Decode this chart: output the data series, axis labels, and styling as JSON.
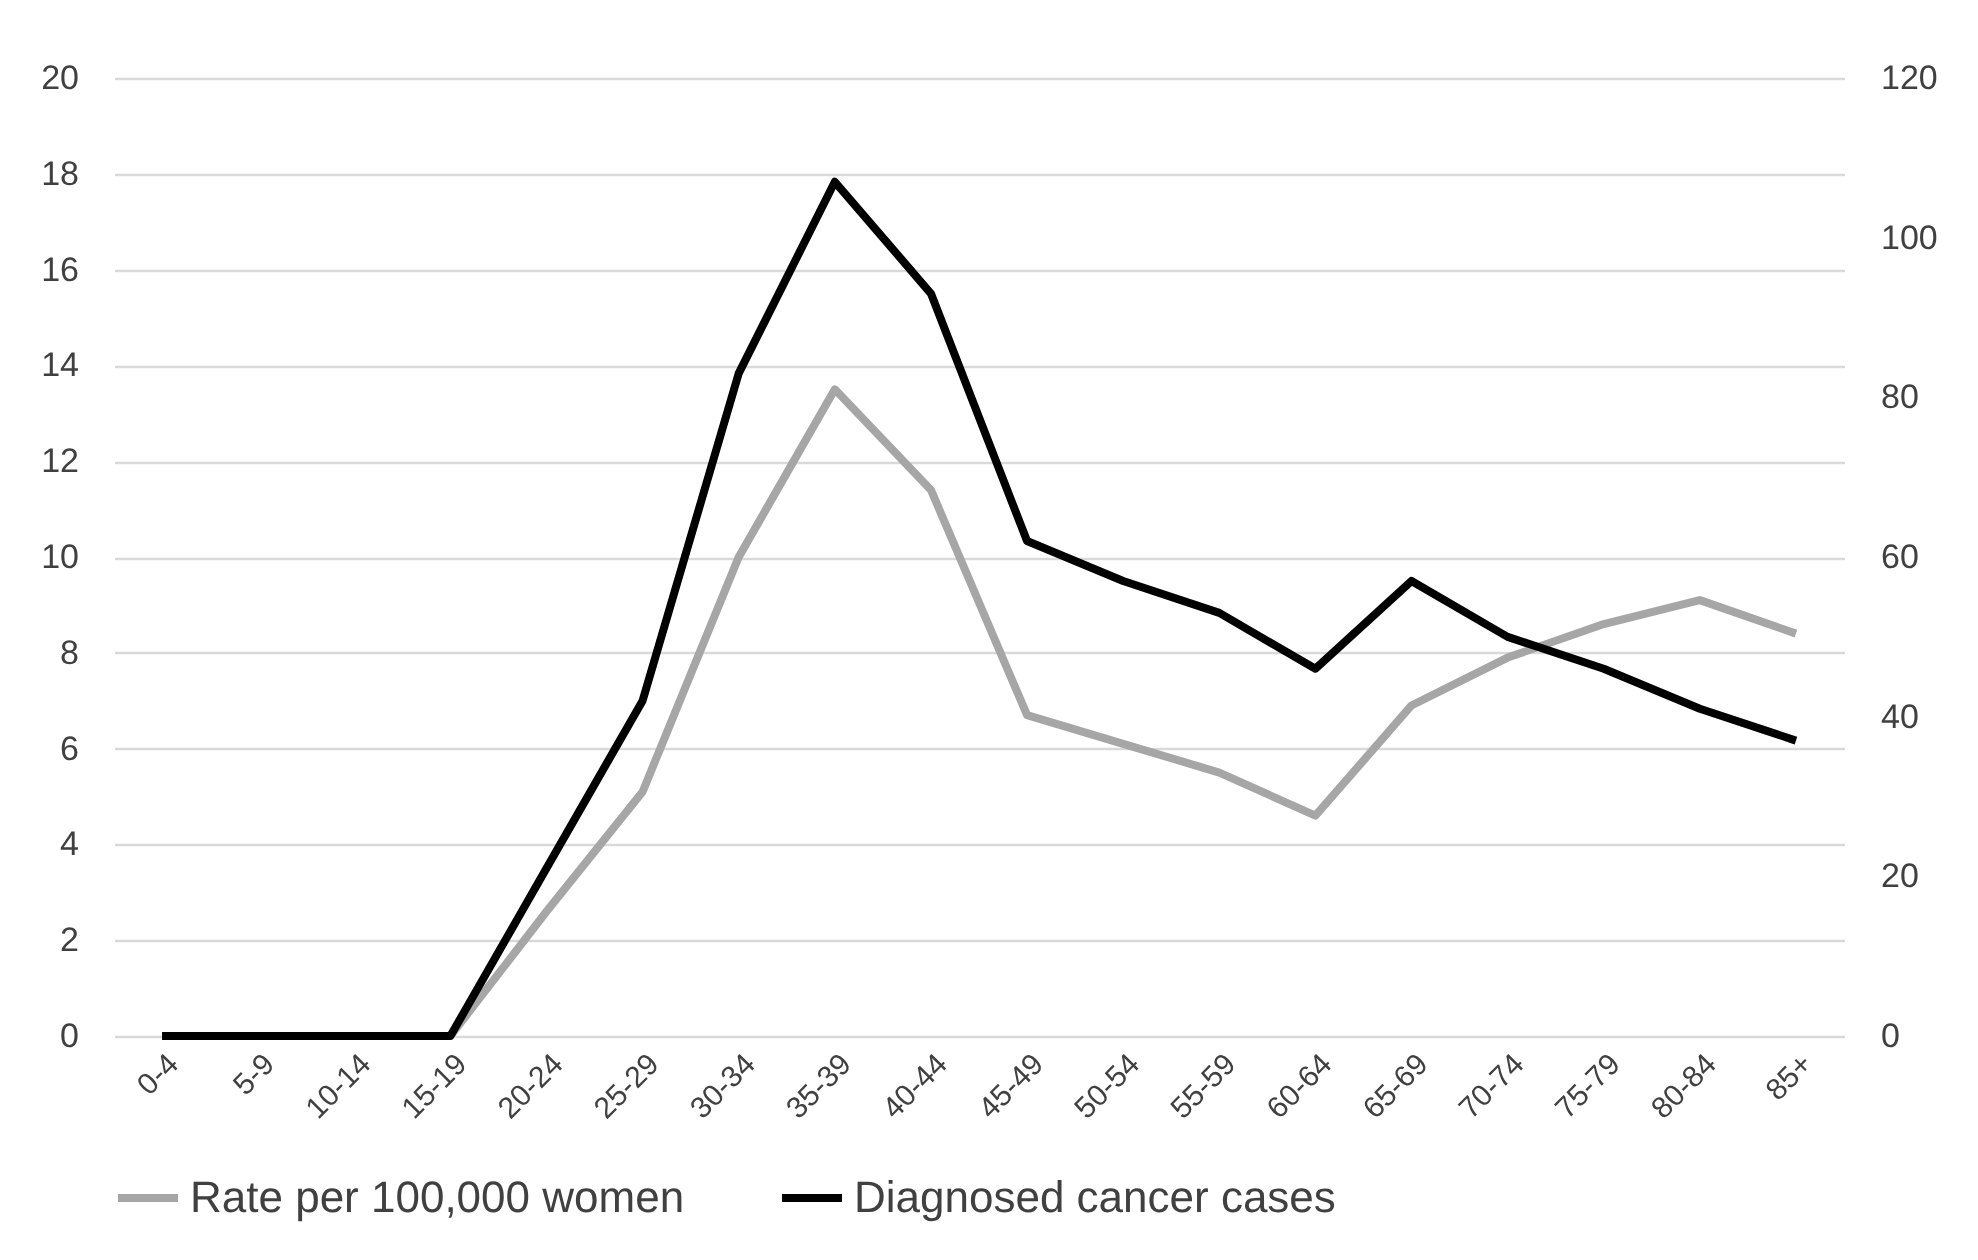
{
  "chart_data": {
    "type": "line",
    "categories": [
      "0-4",
      "5-9",
      "10-14",
      "15-19",
      "20-24",
      "25-29",
      "30-34",
      "35-39",
      "40-44",
      "45-49",
      "50-54",
      "55-59",
      "60-64",
      "65-69",
      "70-74",
      "75-79",
      "80-84",
      "85+"
    ],
    "series": [
      {
        "name": "Rate per 100,000 women",
        "color": "#a6a6a6",
        "values": [
          0,
          0,
          0,
          0,
          2.6,
          5.1,
          10.0,
          13.5,
          11.4,
          6.7,
          6.1,
          5.5,
          4.6,
          6.9,
          7.9,
          8.6,
          9.1,
          8.4
        ]
      },
      {
        "name": "Diagnosed cancer cases",
        "color": "#000000",
        "axis": "y2",
        "values": [
          0,
          0,
          0,
          0,
          21,
          42,
          83,
          107,
          93,
          62,
          57,
          53,
          46,
          57,
          50,
          46,
          41,
          37
        ]
      }
    ],
    "ylim": [
      0,
      20
    ],
    "yticks": [
      0,
      2,
      4,
      6,
      8,
      10,
      12,
      14,
      16,
      18,
      20
    ],
    "y2lim": [
      0,
      120
    ],
    "y2ticks": [
      0,
      20,
      40,
      60,
      80,
      100,
      120
    ],
    "grid": "y",
    "legend": "bottom"
  }
}
